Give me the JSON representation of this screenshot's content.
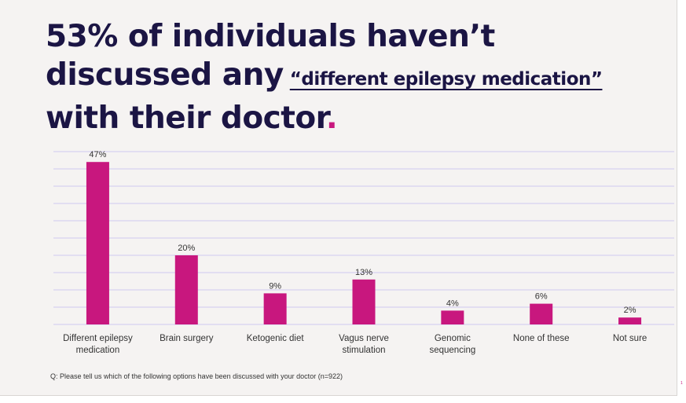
{
  "title": {
    "line1": "53% of individuals haven’t",
    "line2_prefix": "discussed any",
    "highlight": "“different epilepsy medication”",
    "line3": "with their doctor",
    "period": "."
  },
  "footnote": "Q: Please tell us which of the following options have been discussed with your doctor (n=922)",
  "page_number": "1",
  "colors": {
    "bar": "#c8177e",
    "title": "#1b1544",
    "grid": "#cfc8f0",
    "background": "#f5f3f2"
  },
  "chart_data": {
    "type": "bar",
    "categories": [
      [
        "Different epilepsy",
        "medication"
      ],
      [
        "Brain surgery"
      ],
      [
        "Ketogenic diet"
      ],
      [
        "Vagus nerve",
        "stimulation"
      ],
      [
        "Genomic",
        "sequencing"
      ],
      [
        "None of these"
      ],
      [
        "Not sure"
      ]
    ],
    "values": [
      47,
      20,
      9,
      13,
      4,
      6,
      2
    ],
    "data_labels": [
      "47%",
      "20%",
      "9%",
      "13%",
      "4%",
      "6%",
      "2%"
    ],
    "ylim": [
      0,
      50
    ],
    "grid": true,
    "legend": "none"
  }
}
